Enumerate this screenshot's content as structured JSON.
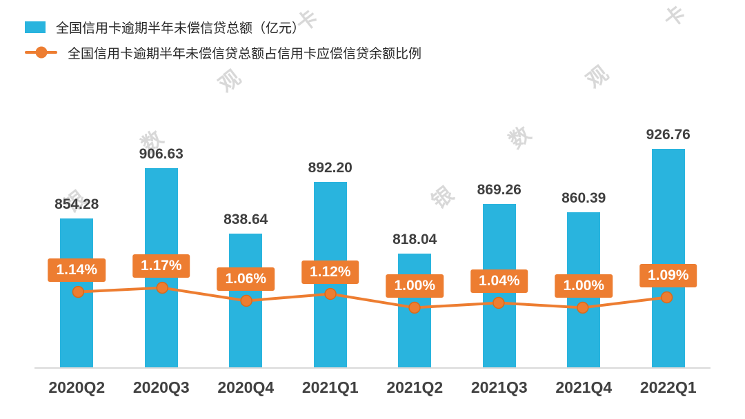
{
  "legend": {
    "items": [
      {
        "label": "全国信用卡逾期半年未偿信贷总额（亿元）",
        "marker": "bar-swatch"
      },
      {
        "label": "全国信用卡逾期半年未偿信贷总额占信用卡应偿信贷余额比例",
        "marker": "line-dot-marker"
      }
    ]
  },
  "watermark": {
    "text": "银 数 观 卡"
  },
  "colors": {
    "bar": "#29b4de",
    "line": "#ed7d31",
    "line_dot_edge": "#d96a1a",
    "pct_box": "#ed7d31",
    "value_text": "#3f3f3f",
    "axis_text": "#404040",
    "baseline": "#d9d9d9",
    "watermark_text": "#9b9b9b"
  },
  "chart_data": {
    "type": "bar",
    "subtype": "bar-line-combo",
    "title": "",
    "xlabel": "",
    "ylabel": "",
    "legend_position": "top-left",
    "grid": false,
    "axes_visible": {
      "x_labels": true,
      "y_axis": false
    },
    "categories": [
      "2020Q2",
      "2020Q3",
      "2020Q4",
      "2021Q1",
      "2021Q2",
      "2021Q3",
      "2021Q4",
      "2022Q1"
    ],
    "series": [
      {
        "name": "全国信用卡逾期半年未偿信贷总额（亿元）",
        "type": "bar",
        "unit": "亿元",
        "values": [
          854.28,
          906.63,
          838.64,
          892.2,
          818.04,
          869.26,
          860.39,
          926.76
        ],
        "labels": [
          "854.28",
          "906.63",
          "838.64",
          "892.20",
          "818.04",
          "869.26",
          "860.39",
          "926.76"
        ]
      },
      {
        "name": "全国信用卡逾期半年未偿信贷总额占信用卡应偿信贷余额比例",
        "type": "line",
        "unit": "%",
        "values": [
          1.14,
          1.17,
          1.06,
          1.12,
          1.0,
          1.04,
          1.0,
          1.09
        ],
        "labels": [
          "1.14%",
          "1.17%",
          "1.06%",
          "1.12%",
          "1.00%",
          "1.04%",
          "1.00%",
          "1.09%"
        ]
      }
    ]
  }
}
